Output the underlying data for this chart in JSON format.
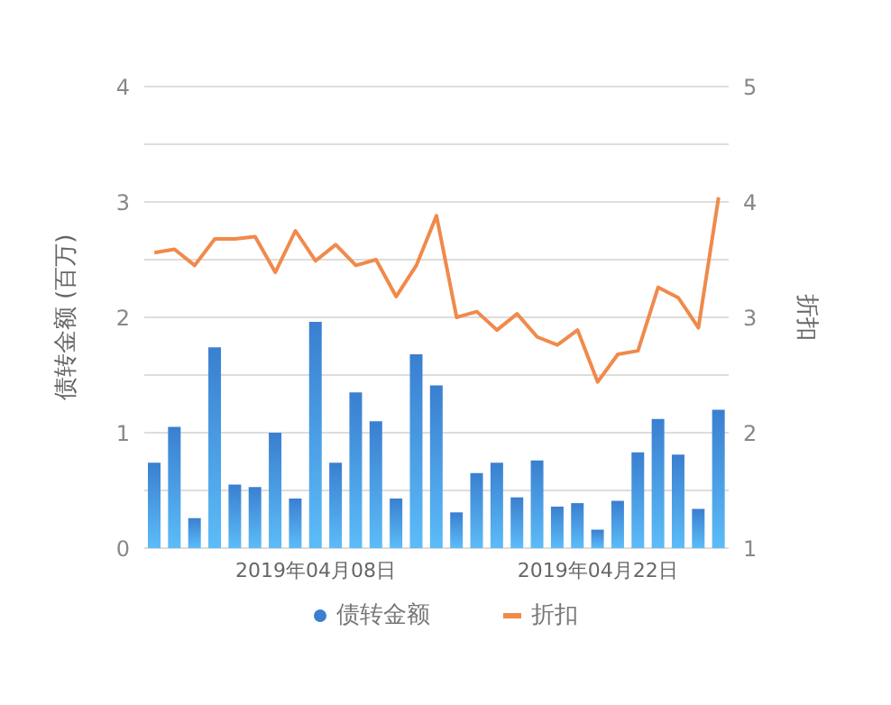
{
  "chart_data": {
    "type": "bar",
    "ylabel": "债转金额 (百万)",
    "y2label": "折扣",
    "categories": [
      null,
      null,
      null,
      null,
      null,
      null,
      null,
      null,
      "2019年04月08日",
      null,
      null,
      null,
      null,
      null,
      null,
      null,
      null,
      null,
      null,
      null,
      null,
      null,
      "2019年04月22日",
      null,
      null,
      null,
      null,
      null,
      null
    ],
    "series": [
      {
        "name": "债转金额",
        "color": "#3a7fd0",
        "values": [
          0.74,
          1.05,
          0.26,
          1.74,
          0.55,
          0.53,
          1.0,
          0.43,
          1.96,
          0.74,
          1.35,
          1.1,
          0.43,
          1.68,
          1.41,
          0.31,
          0.65,
          0.74,
          0.44,
          0.76,
          0.36,
          0.39,
          0.16,
          0.41,
          0.83,
          1.12,
          0.81,
          0.34,
          1.2
        ]
      },
      {
        "name": "折扣",
        "type": "line",
        "axis": "y2",
        "color": "#f08a4b",
        "values": [
          3.56,
          3.59,
          3.45,
          3.68,
          3.68,
          3.7,
          3.39,
          3.75,
          3.49,
          3.63,
          3.45,
          3.5,
          3.18,
          3.45,
          3.88,
          3.0,
          3.05,
          2.89,
          3.03,
          2.83,
          2.76,
          2.89,
          2.44,
          2.68,
          2.71,
          3.26,
          3.17,
          2.91,
          4.04
        ]
      }
    ],
    "ylim": [
      0,
      4
    ],
    "yticks": [
      0,
      {
        "value": 0.5,
        "label": null
      },
      1,
      {
        "value": 1.5,
        "label": null
      },
      2,
      {
        "value": 2.5,
        "label": null
      },
      3,
      {
        "value": 3.5,
        "label": null
      },
      4
    ],
    "y2lim": [
      1,
      5
    ],
    "y2ticks": [
      1,
      2,
      3,
      4,
      5
    ],
    "grid": "y",
    "legend": "bottom",
    "marker": "none"
  }
}
